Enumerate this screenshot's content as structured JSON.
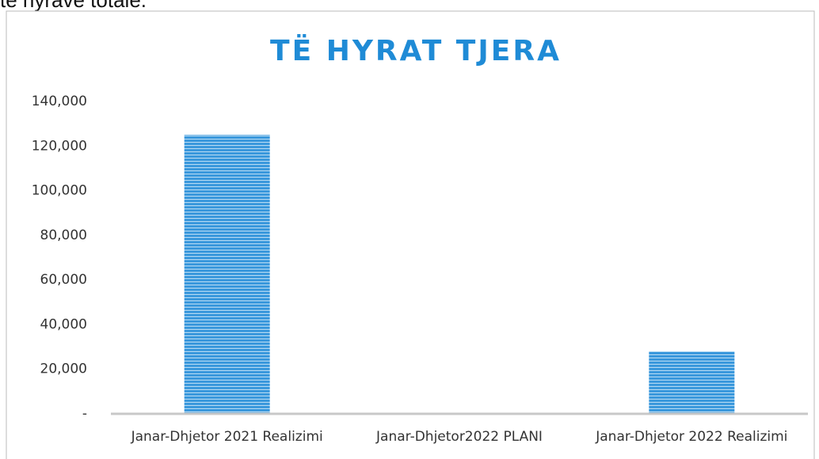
{
  "header_text": "të hyrave totale.",
  "chart_data": {
    "type": "bar",
    "title": "TË HYRAT TJERA",
    "categories": [
      "Janar-Dhjetor 2021 Realizimi",
      "Janar-Dhjetor2022 PLANI",
      "Janar-Dhjetor 2022 Realizimi"
    ],
    "values": [
      125000,
      0,
      28000
    ],
    "color": "#3a98dc",
    "ylim": [
      0,
      140000
    ],
    "yticks": [
      {
        "value": 0,
        "label": "-"
      },
      {
        "value": 20000,
        "label": "20,000"
      },
      {
        "value": 40000,
        "label": "40,000"
      },
      {
        "value": 60000,
        "label": "60,000"
      },
      {
        "value": 80000,
        "label": "80,000"
      },
      {
        "value": 100000,
        "label": "100,000"
      },
      {
        "value": 120000,
        "label": "120,000"
      },
      {
        "value": 140000,
        "label": "140,000"
      }
    ],
    "grid": false
  }
}
